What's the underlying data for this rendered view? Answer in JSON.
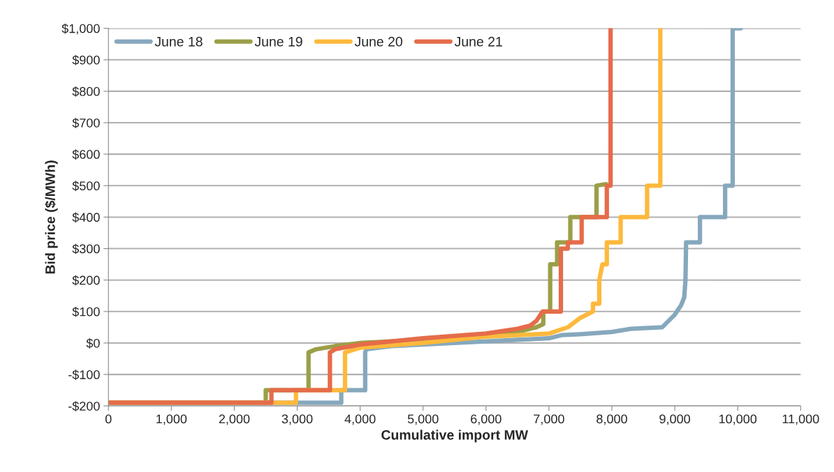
{
  "chart_data": {
    "type": "line",
    "xlabel": "Cumulative import MW",
    "ylabel": "Bid price ($/MWh)",
    "xlim": [
      0,
      11000
    ],
    "ylim": [
      -200,
      1000
    ],
    "xticks": [
      0,
      {
        "value": 1000,
        "label": "1,000"
      },
      {
        "value": 2000,
        "label": "2,000"
      },
      {
        "value": 3000,
        "label": "3,000"
      },
      {
        "value": 4000,
        "label": "4,000"
      },
      {
        "value": 5000,
        "label": "5,000"
      },
      {
        "value": 6000,
        "label": "6,000"
      },
      {
        "value": 7000,
        "label": "7,000"
      },
      {
        "value": 8000,
        "label": "8,000"
      },
      {
        "value": 9000,
        "label": "9,000"
      },
      {
        "value": 10000,
        "label": "10,000"
      },
      {
        "value": 11000,
        "label": "11,000"
      }
    ],
    "yticks": [
      {
        "value": -200,
        "label": "-$200"
      },
      {
        "value": -100,
        "label": "-$100"
      },
      {
        "value": 0,
        "label": "$0"
      },
      {
        "value": 100,
        "label": "$100"
      },
      {
        "value": 200,
        "label": "$200"
      },
      {
        "value": 300,
        "label": "$300"
      },
      {
        "value": 400,
        "label": "$400"
      },
      {
        "value": 500,
        "label": "$500"
      },
      {
        "value": 600,
        "label": "$600"
      },
      {
        "value": 700,
        "label": "$700"
      },
      {
        "value": 800,
        "label": "$800"
      },
      {
        "value": 900,
        "label": "$900"
      },
      {
        "value": 1000,
        "label": "$1,000"
      }
    ],
    "grid": "y",
    "legend": "top left",
    "marker": "none",
    "line_style": "solid",
    "series": [
      {
        "name": "June 18",
        "color": "#86a8bd",
        "x": [
          0,
          3700,
          3700,
          4080,
          4080,
          4100,
          4500,
          5000,
          5500,
          6000,
          6500,
          7000,
          7200,
          7500,
          8000,
          8300,
          8800,
          8900,
          9000,
          9100,
          9150,
          9170,
          9180,
          9400,
          9400,
          9800,
          9800,
          9920,
          9920,
          10050
        ],
        "values": [
          -190,
          -190,
          -150,
          -150,
          -30,
          -20,
          -10,
          -5,
          0,
          5,
          10,
          15,
          25,
          28,
          35,
          45,
          50,
          70,
          90,
          120,
          145,
          200,
          320,
          320,
          400,
          400,
          500,
          500,
          1000,
          1000
        ]
      },
      {
        "name": "June 19",
        "color": "#9b9f48",
        "x": [
          0,
          2500,
          2500,
          3180,
          3180,
          3300,
          3600,
          4000,
          5000,
          6000,
          6500,
          6800,
          6910,
          6910,
          7020,
          7020,
          7130,
          7130,
          7340,
          7340,
          7756,
          7756,
          7910
        ],
        "values": [
          -190,
          -190,
          -150,
          -150,
          -30,
          -20,
          -10,
          0,
          10,
          25,
          35,
          50,
          60,
          100,
          100,
          250,
          250,
          320,
          320,
          400,
          400,
          500,
          505
        ]
      },
      {
        "name": "June 20",
        "color": "#fdb93c",
        "x": [
          0,
          2980,
          2980,
          3760,
          3760,
          4000,
          5000,
          6000,
          7000,
          7300,
          7500,
          7600,
          7700,
          7700,
          7800,
          7800,
          7850,
          7920,
          7920,
          8140,
          8140,
          8560,
          8560,
          8770,
          8770
        ],
        "values": [
          -190,
          -190,
          -150,
          -150,
          -30,
          -15,
          0,
          20,
          30,
          50,
          80,
          90,
          100,
          125,
          125,
          200,
          250,
          250,
          320,
          320,
          400,
          400,
          500,
          500,
          1000
        ]
      },
      {
        "name": "June 21",
        "color": "#e56c4a",
        "x": [
          0,
          2590,
          2590,
          3520,
          3520,
          3600,
          4000,
          5000,
          6000,
          6500,
          6700,
          6800,
          6900,
          7100,
          7190,
          7190,
          7300,
          7300,
          7520,
          7520,
          7920,
          7920,
          7980,
          7980
        ],
        "values": [
          -190,
          -190,
          -150,
          -150,
          -30,
          -20,
          -5,
          15,
          30,
          45,
          55,
          70,
          100,
          100,
          100,
          300,
          300,
          320,
          320,
          400,
          400,
          500,
          500,
          1000
        ]
      }
    ]
  }
}
